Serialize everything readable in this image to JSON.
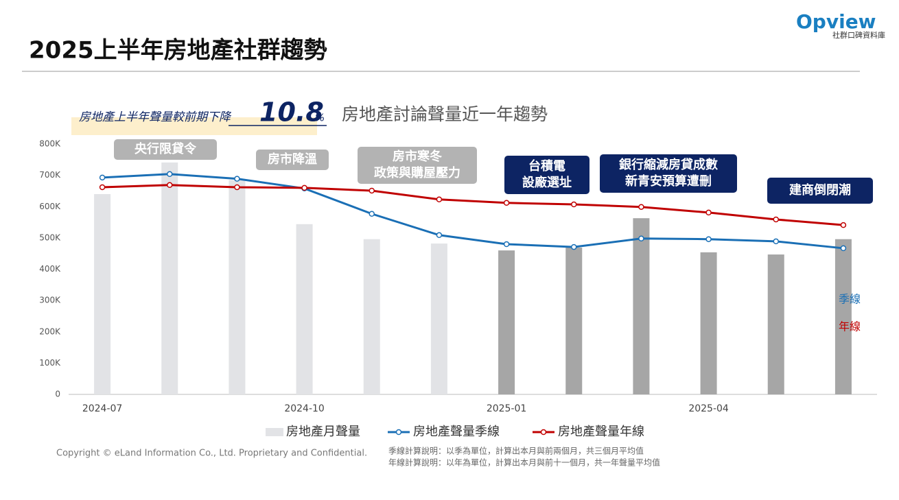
{
  "header": {
    "title": "2025上半年房地產社群趨勢",
    "logo": {
      "name": "Opview",
      "tagline": "社群口碑資料庫"
    }
  },
  "callout": {
    "text": "房地產上半年聲量較前期下降",
    "value": "10.8",
    "unit": "%"
  },
  "annotations": [
    {
      "lines": [
        "央行限貸令"
      ],
      "color": "#b3b3b3"
    },
    {
      "lines": [
        "房市降溫"
      ],
      "color": "#b3b3b3"
    },
    {
      "lines": [
        "房市寒冬",
        "政策與購屋壓力"
      ],
      "color": "#b3b3b3"
    },
    {
      "lines": [
        "台積電",
        "設廠選址"
      ],
      "color": "#0d2463"
    },
    {
      "lines": [
        "銀行縮減房貸成數",
        "新青安預算遭刪"
      ],
      "color": "#0d2463"
    },
    {
      "lines": [
        "建商倒閉潮"
      ],
      "color": "#0d2463"
    }
  ],
  "chart_data": {
    "type": "bar",
    "title": "房地產討論聲量近一年趨勢",
    "categories": [
      "2024-07",
      null,
      null,
      "2024-10",
      null,
      null,
      "2025-01",
      null,
      null,
      "2025-04",
      null,
      null
    ],
    "series": [
      {
        "name": "房地產月聲量",
        "type": "bar",
        "color": "#e2e3e6",
        "colors": [
          "#e2e3e6",
          "#e2e3e6",
          "#e2e3e6",
          "#e2e3e6",
          "#e2e3e6",
          "#e2e3e6",
          "#a6a6a6",
          "#a6a6a6",
          "#a6a6a6",
          "#a6a6a6",
          "#a6a6a6",
          "#a6a6a6"
        ],
        "values": [
          640000,
          741000,
          685000,
          544000,
          496000,
          482000,
          460000,
          469000,
          563000,
          454000,
          447000,
          496000
        ]
      },
      {
        "name": "房地產聲量季線",
        "type": "line",
        "color": "#1a6fb5",
        "end_label": "季線",
        "values": [
          693000,
          704000,
          689000,
          658000,
          577000,
          509000,
          480000,
          471000,
          498000,
          496000,
          489000,
          467000
        ]
      },
      {
        "name": "房地產聲量年線",
        "type": "line",
        "color": "#c00000",
        "end_label": "年線",
        "values": [
          662000,
          669000,
          662000,
          660000,
          651000,
          623000,
          612000,
          607000,
          599000,
          581000,
          559000,
          541000
        ]
      }
    ],
    "ylim": [
      0,
      800000
    ],
    "yticks": [
      0,
      {
        "value": 100000,
        "label": "100K"
      },
      {
        "value": 200000,
        "label": "200K"
      },
      {
        "value": 300000,
        "label": "300K"
      },
      {
        "value": 400000,
        "label": "400K"
      },
      {
        "value": 500000,
        "label": "500K"
      },
      {
        "value": 600000,
        "label": "600K"
      },
      {
        "value": 700000,
        "label": "700K"
      },
      {
        "value": 800000,
        "label": "800K"
      }
    ],
    "grid": false
  },
  "footer": {
    "copyright": "Copyright © eLand Information Co., Ltd. Proprietary and Confidential.",
    "notes": [
      "季線計算說明：以季為單位，計算出本月與前兩個月，共三個月平均值",
      "年線計算說明：以年為單位，計算出本月與前十一個月，共一年聲量平均值"
    ]
  }
}
